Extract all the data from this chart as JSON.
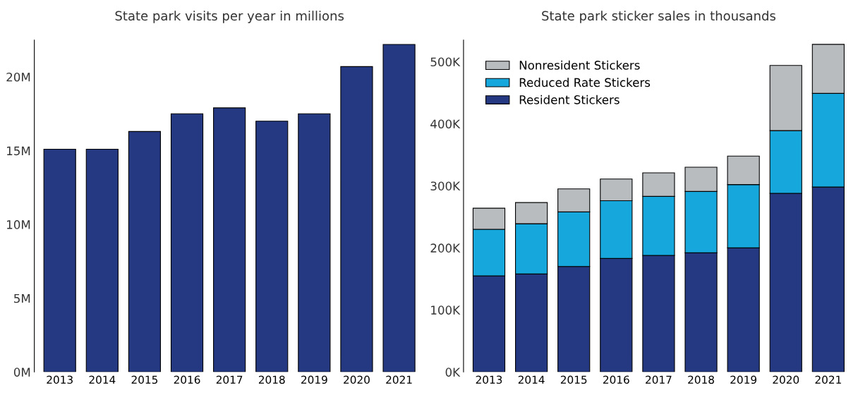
{
  "chart_data": [
    {
      "type": "bar",
      "title": "State park visits per year in millions",
      "categories": [
        "2013",
        "2014",
        "2015",
        "2016",
        "2017",
        "2018",
        "2019",
        "2020",
        "2021"
      ],
      "values": [
        15.1,
        15.1,
        16.3,
        17.5,
        17.9,
        17.0,
        17.5,
        20.7,
        22.2
      ],
      "color": "#253882",
      "ylim": [
        0,
        22.5
      ],
      "yticks": [
        {
          "value": 0,
          "label": "0M"
        },
        {
          "value": 5,
          "label": "5M"
        },
        {
          "value": 10,
          "label": "10M"
        },
        {
          "value": 15,
          "label": "15M"
        },
        {
          "value": 20,
          "label": "20M"
        }
      ],
      "grid": false
    },
    {
      "type": "bar",
      "title": "State park sticker sales in thousands",
      "stacked": true,
      "legend": "top left",
      "categories": [
        "2013",
        "2014",
        "2015",
        "2016",
        "2017",
        "2018",
        "2019",
        "2020",
        "2021"
      ],
      "series": [
        {
          "name": "Resident Stickers",
          "color": "#253882",
          "values": [
            155,
            158,
            170,
            183,
            188,
            192,
            200,
            288,
            298
          ]
        },
        {
          "name": "Reduced Rate Stickers",
          "color": "#16a7dc",
          "values": [
            75,
            81,
            88,
            93,
            95,
            99,
            102,
            101,
            151
          ]
        },
        {
          "name": "Nonresident Stickers",
          "color": "#b9bcbf",
          "values": [
            34,
            34,
            37,
            35,
            38,
            39,
            46,
            105,
            79
          ]
        }
      ],
      "ylim": [
        0,
        535
      ],
      "yticks": [
        {
          "value": 0,
          "label": "0K"
        },
        {
          "value": 100,
          "label": "100K"
        },
        {
          "value": 200,
          "label": "200K"
        },
        {
          "value": 300,
          "label": "300K"
        },
        {
          "value": 400,
          "label": "400K"
        },
        {
          "value": 500,
          "label": "500K"
        }
      ],
      "grid": false
    }
  ]
}
